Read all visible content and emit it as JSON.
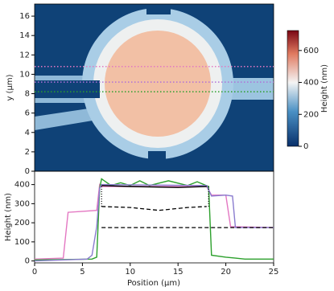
{
  "chart_data": [
    {
      "type": "heatmap",
      "ylabel": "y (μm)",
      "ylim": [
        0,
        17.25
      ],
      "yticks": [
        0,
        2,
        4,
        6,
        8,
        10,
        12,
        14,
        16
      ],
      "cut_lines": [
        {
          "y": 10.8,
          "color": "#e377c2"
        },
        {
          "y": 9.2,
          "color": "#b070d8"
        },
        {
          "y": 8.2,
          "color": "#2ca02c"
        }
      ],
      "colorbar": {
        "label": "Height (nm)",
        "clim": [
          0,
          725
        ],
        "ticks": [
          0,
          200,
          400,
          600
        ]
      }
    },
    {
      "type": "line",
      "xlabel": "Position (μm)",
      "ylabel": "Height (nm)",
      "xlim": [
        0,
        25
      ],
      "ylim": [
        -10,
        470
      ],
      "xticks": [
        0,
        5,
        10,
        15,
        20,
        25
      ],
      "yticks": [
        0,
        100,
        200,
        300,
        400
      ],
      "series": [
        {
          "color": "#e377c2",
          "style": "solid",
          "x": [
            0,
            3,
            3.5,
            5,
            6.5,
            6.8,
            7,
            18,
            18.5,
            20,
            20.5,
            25
          ],
          "values": [
            10,
            15,
            255,
            260,
            265,
            400,
            390,
            390,
            345,
            345,
            180,
            175
          ]
        },
        {
          "color": "#2ca02c",
          "style": "solid",
          "x": [
            0,
            6,
            6.5,
            6.8,
            7,
            8,
            9,
            10,
            11,
            12,
            14,
            16,
            17,
            18.2,
            18.5,
            20,
            21,
            22,
            25
          ],
          "values": [
            5,
            10,
            20,
            380,
            430,
            395,
            410,
            395,
            420,
            395,
            420,
            395,
            415,
            390,
            30,
            20,
            15,
            10,
            10
          ]
        },
        {
          "color": "#8a7ccf",
          "style": "solid",
          "x": [
            0,
            5.5,
            6,
            6.5,
            6.8,
            7,
            18,
            18.5,
            20,
            20.7,
            21,
            25
          ],
          "values": [
            0,
            10,
            30,
            180,
            380,
            400,
            395,
            340,
            345,
            340,
            175,
            175
          ]
        },
        {
          "color": "#000000",
          "style": "solid",
          "x": [
            7,
            10,
            15,
            18
          ],
          "values": [
            395,
            390,
            385,
            390
          ]
        },
        {
          "color": "#000000",
          "style": "dashed",
          "x": [
            7,
            10,
            13,
            16,
            18
          ],
          "values": [
            285,
            280,
            265,
            280,
            285
          ]
        },
        {
          "color": "#000000",
          "style": "dashed",
          "x": [
            7,
            25
          ],
          "values": [
            175,
            175
          ]
        },
        {
          "color": "#000000",
          "style": "dotted",
          "x": [
            7,
            7
          ],
          "values": [
            285,
            395
          ]
        },
        {
          "color": "#000000",
          "style": "dotted",
          "x": [
            18.2,
            18.2
          ],
          "values": [
            285,
            390
          ]
        }
      ]
    }
  ]
}
